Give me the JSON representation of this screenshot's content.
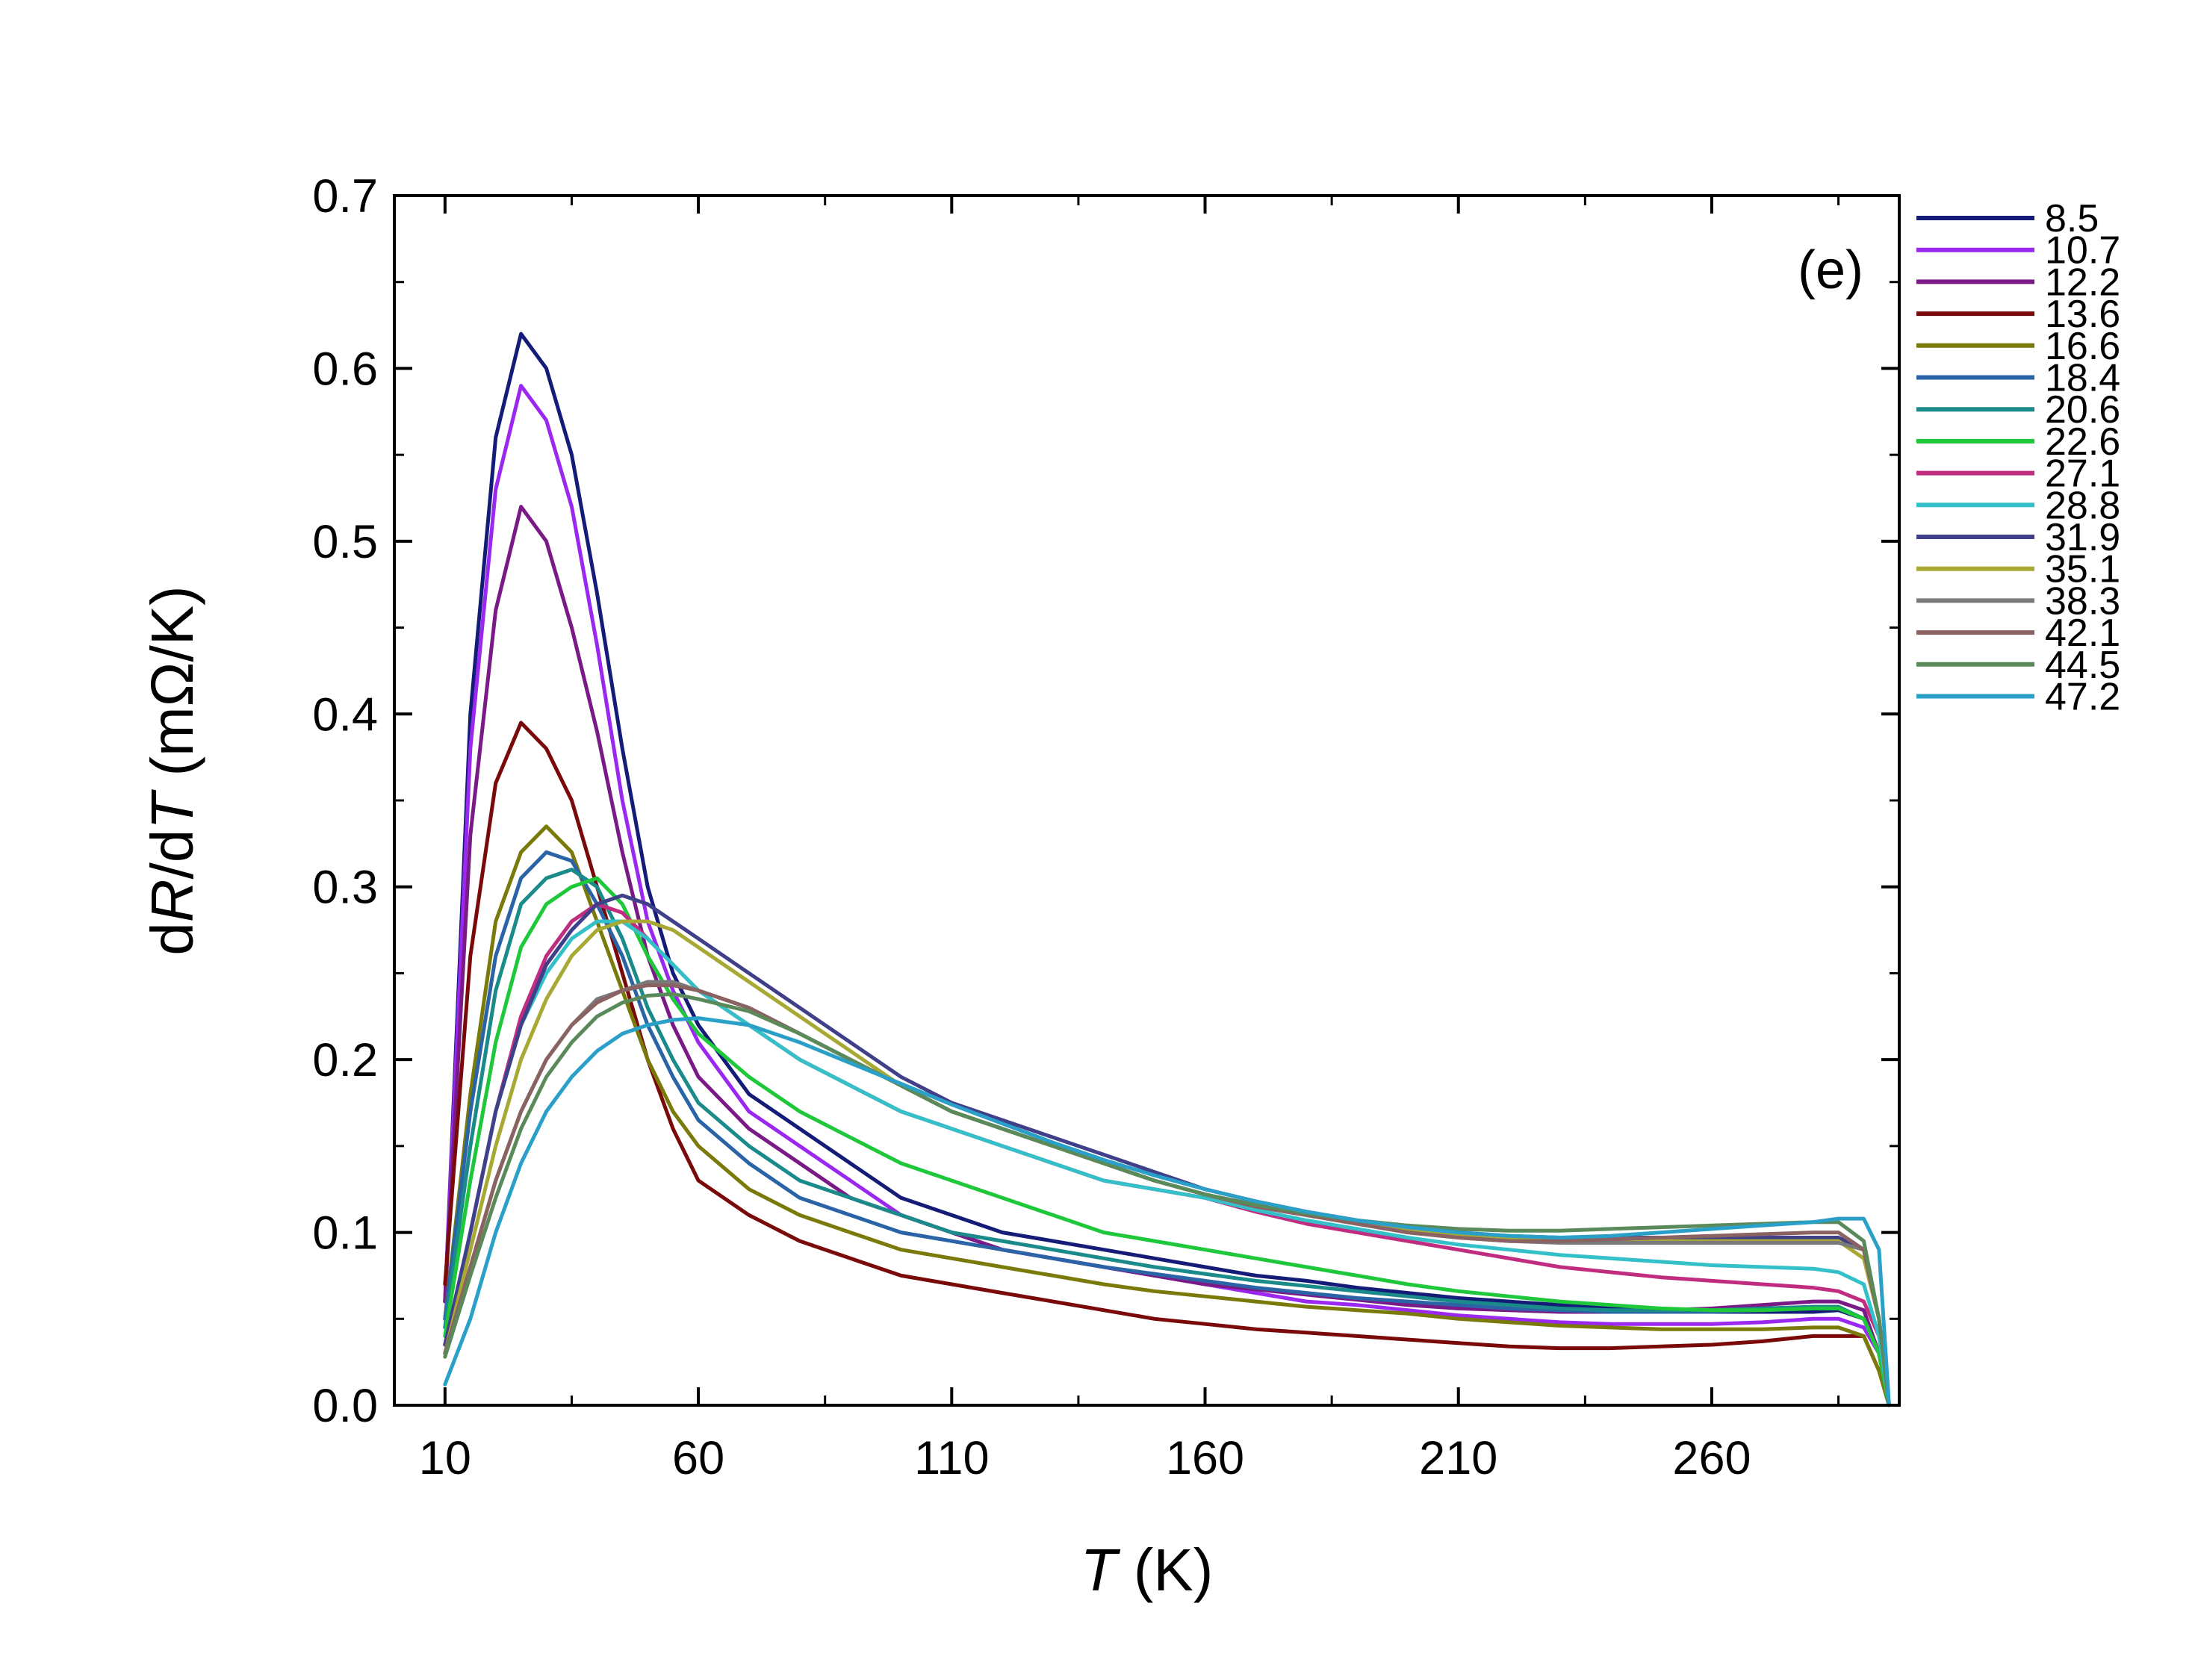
{
  "chart_data": {
    "type": "line",
    "title": "",
    "annotation": "(e)",
    "xlabel": {
      "var": "T",
      "rest": " (K)"
    },
    "ylabel": {
      "d1": "d",
      "R": "R",
      "slash": "/d",
      "T": "T",
      "units": " (mΩ/K)"
    },
    "xlim": [
      0,
      297
    ],
    "ylim": [
      0,
      0.7
    ],
    "xticks": [
      10,
      60,
      110,
      160,
      210,
      260
    ],
    "xtick_labels": [
      "10",
      "60",
      "110",
      "160",
      "210",
      "260"
    ],
    "yticks": [
      0,
      0.1,
      0.2,
      0.3,
      0.4,
      0.5,
      0.6,
      0.7
    ],
    "ytick_labels": [
      "0.0",
      "0.1",
      "0.2",
      "0.3",
      "0.4",
      "0.5",
      "0.6",
      "0.7"
    ],
    "grid": false,
    "legend_position": "right-outside",
    "x": [
      10,
      15,
      20,
      25,
      30,
      35,
      40,
      45,
      50,
      55,
      60,
      70,
      80,
      90,
      100,
      110,
      120,
      130,
      140,
      150,
      160,
      170,
      180,
      190,
      200,
      210,
      220,
      230,
      240,
      250,
      260,
      270,
      280,
      285,
      290,
      293,
      295
    ],
    "series": [
      {
        "name": "8.5",
        "color": "#141c78",
        "values": [
          0.06,
          0.4,
          0.56,
          0.62,
          0.6,
          0.55,
          0.47,
          0.38,
          0.3,
          0.25,
          0.22,
          0.18,
          0.16,
          0.14,
          0.12,
          0.11,
          0.1,
          0.095,
          0.09,
          0.085,
          0.08,
          0.075,
          0.072,
          0.068,
          0.065,
          0.062,
          0.06,
          0.058,
          0.056,
          0.055,
          0.054,
          0.054,
          0.054,
          0.055,
          0.05,
          0.03,
          0.0
        ]
      },
      {
        "name": "10.7",
        "color": "#9a28f0",
        "values": [
          0.06,
          0.38,
          0.53,
          0.59,
          0.57,
          0.52,
          0.44,
          0.35,
          0.28,
          0.24,
          0.21,
          0.17,
          0.15,
          0.13,
          0.11,
          0.1,
          0.09,
          0.085,
          0.08,
          0.075,
          0.07,
          0.065,
          0.06,
          0.058,
          0.055,
          0.052,
          0.05,
          0.048,
          0.047,
          0.047,
          0.047,
          0.048,
          0.05,
          0.05,
          0.045,
          0.03,
          0.0
        ]
      },
      {
        "name": "12.2",
        "color": "#7a1a86",
        "values": [
          0.06,
          0.33,
          0.46,
          0.52,
          0.5,
          0.45,
          0.39,
          0.32,
          0.26,
          0.22,
          0.19,
          0.16,
          0.14,
          0.12,
          0.11,
          0.1,
          0.09,
          0.085,
          0.08,
          0.075,
          0.07,
          0.067,
          0.064,
          0.061,
          0.058,
          0.056,
          0.055,
          0.054,
          0.054,
          0.055,
          0.056,
          0.058,
          0.06,
          0.06,
          0.055,
          0.03,
          0.0
        ]
      },
      {
        "name": "13.6",
        "color": "#7a0a0a",
        "values": [
          0.07,
          0.26,
          0.36,
          0.395,
          0.38,
          0.35,
          0.3,
          0.25,
          0.2,
          0.16,
          0.13,
          0.11,
          0.095,
          0.085,
          0.075,
          0.07,
          0.065,
          0.06,
          0.055,
          0.05,
          0.047,
          0.044,
          0.042,
          0.04,
          0.038,
          0.036,
          0.034,
          0.033,
          0.033,
          0.034,
          0.035,
          0.037,
          0.04,
          0.04,
          0.04,
          0.02,
          0.0
        ]
      },
      {
        "name": "16.6",
        "color": "#7a7a0a",
        "values": [
          0.05,
          0.18,
          0.28,
          0.32,
          0.335,
          0.32,
          0.28,
          0.24,
          0.2,
          0.17,
          0.15,
          0.125,
          0.11,
          0.1,
          0.09,
          0.085,
          0.08,
          0.075,
          0.07,
          0.066,
          0.063,
          0.06,
          0.057,
          0.055,
          0.053,
          0.05,
          0.048,
          0.046,
          0.045,
          0.044,
          0.044,
          0.044,
          0.045,
          0.045,
          0.04,
          0.02,
          0.0
        ]
      },
      {
        "name": "18.4",
        "color": "#2a64a6",
        "values": [
          0.05,
          0.17,
          0.26,
          0.305,
          0.32,
          0.315,
          0.29,
          0.26,
          0.22,
          0.19,
          0.165,
          0.14,
          0.12,
          0.11,
          0.1,
          0.095,
          0.09,
          0.085,
          0.08,
          0.076,
          0.072,
          0.068,
          0.065,
          0.062,
          0.06,
          0.058,
          0.056,
          0.055,
          0.054,
          0.054,
          0.054,
          0.055,
          0.056,
          0.056,
          0.05,
          0.03,
          0.0
        ]
      },
      {
        "name": "20.6",
        "color": "#1a8a8a",
        "values": [
          0.045,
          0.15,
          0.24,
          0.29,
          0.305,
          0.31,
          0.3,
          0.27,
          0.23,
          0.2,
          0.175,
          0.15,
          0.13,
          0.12,
          0.11,
          0.1,
          0.095,
          0.09,
          0.085,
          0.08,
          0.076,
          0.072,
          0.069,
          0.066,
          0.063,
          0.06,
          0.058,
          0.056,
          0.055,
          0.055,
          0.055,
          0.056,
          0.057,
          0.057,
          0.05,
          0.03,
          0.0
        ]
      },
      {
        "name": "22.6",
        "color": "#1ec83a",
        "values": [
          0.04,
          0.13,
          0.21,
          0.265,
          0.29,
          0.3,
          0.305,
          0.29,
          0.26,
          0.235,
          0.215,
          0.19,
          0.17,
          0.155,
          0.14,
          0.13,
          0.12,
          0.11,
          0.1,
          0.095,
          0.09,
          0.085,
          0.08,
          0.075,
          0.07,
          0.066,
          0.063,
          0.06,
          0.058,
          0.056,
          0.055,
          0.055,
          0.056,
          0.056,
          0.05,
          0.03,
          0.0
        ]
      },
      {
        "name": "27.1",
        "color": "#c02c80",
        "values": [
          0.035,
          0.1,
          0.17,
          0.225,
          0.26,
          0.28,
          0.29,
          0.285,
          0.27,
          0.255,
          0.24,
          0.22,
          0.2,
          0.185,
          0.17,
          0.16,
          0.15,
          0.14,
          0.13,
          0.125,
          0.12,
          0.112,
          0.105,
          0.1,
          0.095,
          0.09,
          0.085,
          0.08,
          0.077,
          0.074,
          0.072,
          0.07,
          0.068,
          0.066,
          0.06,
          0.04,
          0.0
        ]
      },
      {
        "name": "28.8",
        "color": "#34c0c8",
        "values": [
          0.035,
          0.1,
          0.17,
          0.22,
          0.25,
          0.27,
          0.28,
          0.28,
          0.27,
          0.255,
          0.24,
          0.22,
          0.2,
          0.185,
          0.17,
          0.16,
          0.15,
          0.14,
          0.13,
          0.125,
          0.12,
          0.113,
          0.107,
          0.102,
          0.097,
          0.093,
          0.09,
          0.087,
          0.085,
          0.083,
          0.081,
          0.08,
          0.079,
          0.077,
          0.07,
          0.04,
          0.0
        ]
      },
      {
        "name": "31.9",
        "color": "#40408a",
        "values": [
          0.035,
          0.1,
          0.17,
          0.22,
          0.255,
          0.275,
          0.29,
          0.295,
          0.29,
          0.28,
          0.27,
          0.25,
          0.23,
          0.21,
          0.19,
          0.175,
          0.165,
          0.155,
          0.145,
          0.135,
          0.125,
          0.118,
          0.112,
          0.107,
          0.103,
          0.1,
          0.098,
          0.097,
          0.097,
          0.097,
          0.097,
          0.097,
          0.097,
          0.097,
          0.09,
          0.05,
          0.0
        ]
      },
      {
        "name": "35.1",
        "color": "#a8a834",
        "values": [
          0.03,
          0.09,
          0.15,
          0.2,
          0.235,
          0.26,
          0.275,
          0.28,
          0.28,
          0.275,
          0.265,
          0.245,
          0.225,
          0.205,
          0.185,
          0.17,
          0.16,
          0.15,
          0.14,
          0.13,
          0.122,
          0.115,
          0.11,
          0.105,
          0.101,
          0.098,
          0.096,
          0.095,
          0.095,
          0.095,
          0.095,
          0.095,
          0.095,
          0.095,
          0.085,
          0.05,
          0.0
        ]
      },
      {
        "name": "38.3",
        "color": "#7a7a7a",
        "values": [
          0.03,
          0.08,
          0.13,
          0.17,
          0.2,
          0.22,
          0.235,
          0.24,
          0.245,
          0.245,
          0.24,
          0.23,
          0.215,
          0.2,
          0.185,
          0.17,
          0.16,
          0.15,
          0.14,
          0.13,
          0.122,
          0.115,
          0.11,
          0.105,
          0.1,
          0.097,
          0.095,
          0.094,
          0.094,
          0.094,
          0.094,
          0.094,
          0.094,
          0.094,
          0.09,
          0.05,
          0.0
        ]
      },
      {
        "name": "42.1",
        "color": "#8a6262",
        "values": [
          0.03,
          0.08,
          0.13,
          0.17,
          0.2,
          0.22,
          0.233,
          0.24,
          0.243,
          0.243,
          0.24,
          0.23,
          0.215,
          0.2,
          0.185,
          0.17,
          0.16,
          0.15,
          0.14,
          0.13,
          0.122,
          0.115,
          0.11,
          0.105,
          0.1,
          0.097,
          0.095,
          0.095,
          0.096,
          0.097,
          0.098,
          0.099,
          0.1,
          0.1,
          0.09,
          0.05,
          0.0
        ]
      },
      {
        "name": "44.5",
        "color": "#5a8a5a",
        "values": [
          0.028,
          0.075,
          0.12,
          0.16,
          0.19,
          0.21,
          0.225,
          0.233,
          0.237,
          0.238,
          0.235,
          0.228,
          0.215,
          0.2,
          0.185,
          0.17,
          0.16,
          0.15,
          0.14,
          0.13,
          0.122,
          0.116,
          0.111,
          0.107,
          0.104,
          0.102,
          0.101,
          0.101,
          0.102,
          0.103,
          0.104,
          0.105,
          0.106,
          0.106,
          0.095,
          0.05,
          0.0
        ]
      },
      {
        "name": "47.2",
        "color": "#2aa0c8",
        "values": [
          0.012,
          0.05,
          0.1,
          0.14,
          0.17,
          0.19,
          0.205,
          0.215,
          0.22,
          0.223,
          0.224,
          0.22,
          0.21,
          0.198,
          0.186,
          0.174,
          0.163,
          0.152,
          0.142,
          0.133,
          0.125,
          0.118,
          0.112,
          0.107,
          0.103,
          0.1,
          0.098,
          0.097,
          0.098,
          0.1,
          0.102,
          0.104,
          0.106,
          0.108,
          0.108,
          0.09,
          0.0
        ]
      }
    ]
  }
}
